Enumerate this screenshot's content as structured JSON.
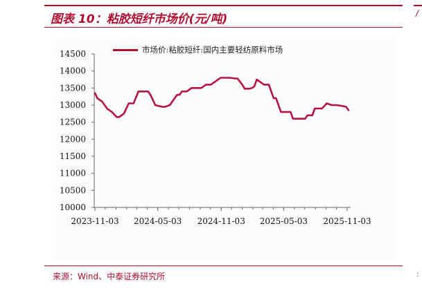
{
  "figure": {
    "title": "图表 10：粘胶短纤市场价(元/吨)",
    "source": "来源：Wind、中泰证券研究所"
  },
  "colors": {
    "accent": "#b00e2f",
    "series": "#b4123f"
  },
  "chart_data": {
    "type": "line",
    "title": "",
    "xlabel": "",
    "ylabel": "",
    "ylim": [
      10000,
      14500
    ],
    "y_ticks": [
      10000,
      10500,
      11000,
      11500,
      12000,
      12500,
      13000,
      13500,
      14000,
      14500
    ],
    "x_tick_labels": [
      "2023-11-03",
      "2024-05-03",
      "2024-11-03",
      "2025-05-03",
      "2025-11-03"
    ],
    "x_tick_dates": [
      "2023-11-03",
      "2024-05-03",
      "2024-11-03",
      "2025-05-03",
      "2025-11-03"
    ],
    "x_range": [
      "2023-11-03",
      "2025-11-10"
    ],
    "legend_position": "top",
    "grid": false,
    "series": [
      {
        "name": "市场价:粘胶短纤:国内主要轻纺原料市场",
        "x": [
          "2023-11-03",
          "2023-11-10",
          "2023-11-24",
          "2023-12-08",
          "2023-12-22",
          "2024-01-05",
          "2024-01-12",
          "2024-01-26",
          "2024-02-02",
          "2024-02-09",
          "2024-02-23",
          "2024-03-08",
          "2024-03-22",
          "2024-04-05",
          "2024-04-12",
          "2024-04-26",
          "2024-05-03",
          "2024-05-17",
          "2024-05-24",
          "2024-06-07",
          "2024-06-14",
          "2024-06-28",
          "2024-07-05",
          "2024-07-12",
          "2024-07-26",
          "2024-08-09",
          "2024-08-23",
          "2024-09-06",
          "2024-09-20",
          "2024-10-04",
          "2024-10-18",
          "2024-11-01",
          "2024-11-15",
          "2024-11-29",
          "2024-12-13",
          "2024-12-20",
          "2025-01-03",
          "2025-01-10",
          "2025-01-24",
          "2025-01-31",
          "2025-02-07",
          "2025-02-14",
          "2025-02-28",
          "2025-03-07",
          "2025-03-21",
          "2025-04-04",
          "2025-04-11",
          "2025-04-25",
          "2025-05-09",
          "2025-05-23",
          "2025-05-30",
          "2025-06-13",
          "2025-06-27",
          "2025-07-04",
          "2025-07-11",
          "2025-07-25",
          "2025-08-01",
          "2025-08-08",
          "2025-08-22",
          "2025-09-05",
          "2025-09-19",
          "2025-10-03",
          "2025-10-17",
          "2025-10-31",
          "2025-11-07"
        ],
        "values": [
          13350,
          13200,
          13100,
          12900,
          12800,
          12650,
          12650,
          12750,
          12900,
          13050,
          13050,
          13400,
          13400,
          13400,
          13300,
          13000,
          12980,
          12950,
          12950,
          13000,
          13100,
          13300,
          13300,
          13400,
          13400,
          13500,
          13500,
          13500,
          13600,
          13600,
          13700,
          13800,
          13800,
          13800,
          13780,
          13780,
          13600,
          13480,
          13480,
          13500,
          13550,
          13750,
          13650,
          13600,
          13600,
          13200,
          13200,
          12800,
          12800,
          12800,
          12600,
          12600,
          12600,
          12600,
          12700,
          12700,
          12900,
          12900,
          12900,
          13050,
          13000,
          13000,
          12980,
          12950,
          12850
        ]
      }
    ]
  }
}
